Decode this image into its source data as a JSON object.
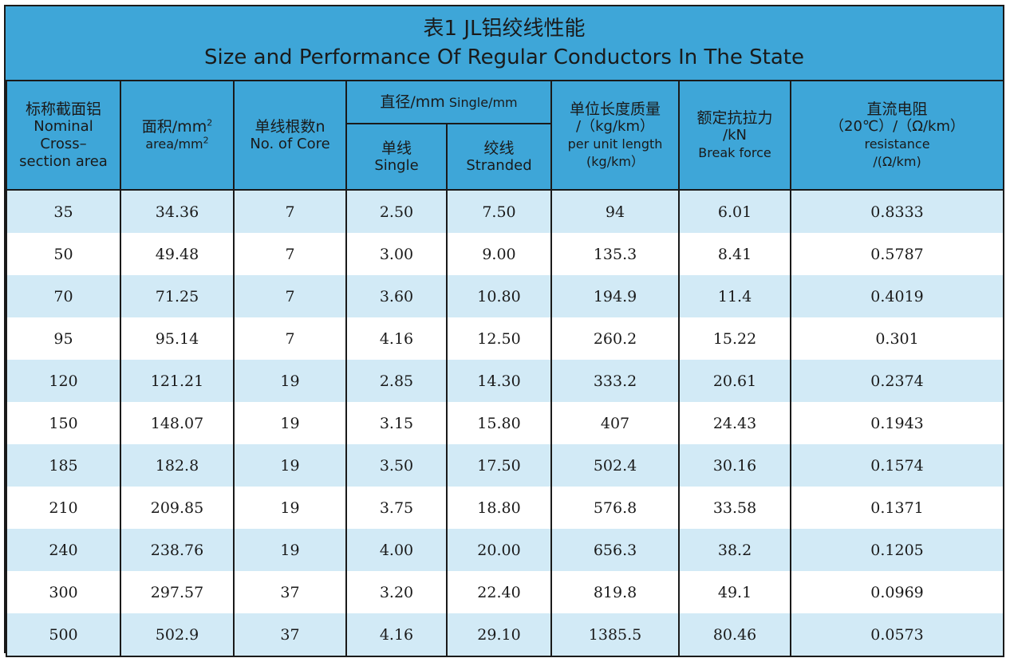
{
  "title": {
    "cn": "表1 JL铝绞线性能",
    "en": "Size and Performance Of Regular Conductors In The State"
  },
  "headers": {
    "nominal": {
      "cn": "标称截面铝",
      "en1": "Nominal",
      "en2": "Cross–",
      "en3": "section area"
    },
    "area": {
      "cn": "面积/mm",
      "cn_sup": "2",
      "en": "area/mm",
      "en_sup": "2"
    },
    "cores": {
      "cn": "单线根数n",
      "en": "No. of Core"
    },
    "diameter": {
      "cn": "直径/mm",
      "en": "Single/mm"
    },
    "single": {
      "cn": "单线",
      "en": "Single"
    },
    "stranded": {
      "cn": "绞线",
      "en": "Stranded"
    },
    "mass": {
      "cn": "单位长度质量",
      "line2": "/（kg/km）",
      "en": "per unit length",
      "line4": "(kg/km）"
    },
    "force": {
      "cn": "额定抗拉力",
      "line2": "/kN",
      "en": "Break force"
    },
    "resistance": {
      "cn": "直流电阻",
      "line2": "（20℃）/（Ω/km）",
      "en": "resistance",
      "line4": "/(Ω/km)"
    }
  },
  "rows": [
    [
      "35",
      "34.36",
      "7",
      "2.50",
      "7.50",
      "94",
      "6.01",
      "0.8333"
    ],
    [
      "50",
      "49.48",
      "7",
      "3.00",
      "9.00",
      "135.3",
      "8.41",
      "0.5787"
    ],
    [
      "70",
      "71.25",
      "7",
      "3.60",
      "10.80",
      "194.9",
      "11.4",
      "0.4019"
    ],
    [
      "95",
      "95.14",
      "7",
      "4.16",
      "12.50",
      "260.2",
      "15.22",
      "0.301"
    ],
    [
      "120",
      "121.21",
      "19",
      "2.85",
      "14.30",
      "333.2",
      "20.61",
      "0.2374"
    ],
    [
      "150",
      "148.07",
      "19",
      "3.15",
      "15.80",
      "407",
      "24.43",
      "0.1943"
    ],
    [
      "185",
      "182.8",
      "19",
      "3.50",
      "17.50",
      "502.4",
      "30.16",
      "0.1574"
    ],
    [
      "210",
      "209.85",
      "19",
      "3.75",
      "18.80",
      "576.8",
      "33.58",
      "0.1371"
    ],
    [
      "240",
      "238.76",
      "19",
      "4.00",
      "20.00",
      "656.3",
      "38.2",
      "0.1205"
    ],
    [
      "300",
      "297.57",
      "37",
      "3.20",
      "22.40",
      "819.8",
      "49.1",
      "0.0969"
    ],
    [
      "500",
      "502.9",
      "37",
      "4.16",
      "29.10",
      "1385.5",
      "80.46",
      "0.0573"
    ]
  ],
  "colors": {
    "header_blue": "#3ea6d8",
    "stripe_blue": "#d2eaf6",
    "text": "#1a1a1a"
  }
}
